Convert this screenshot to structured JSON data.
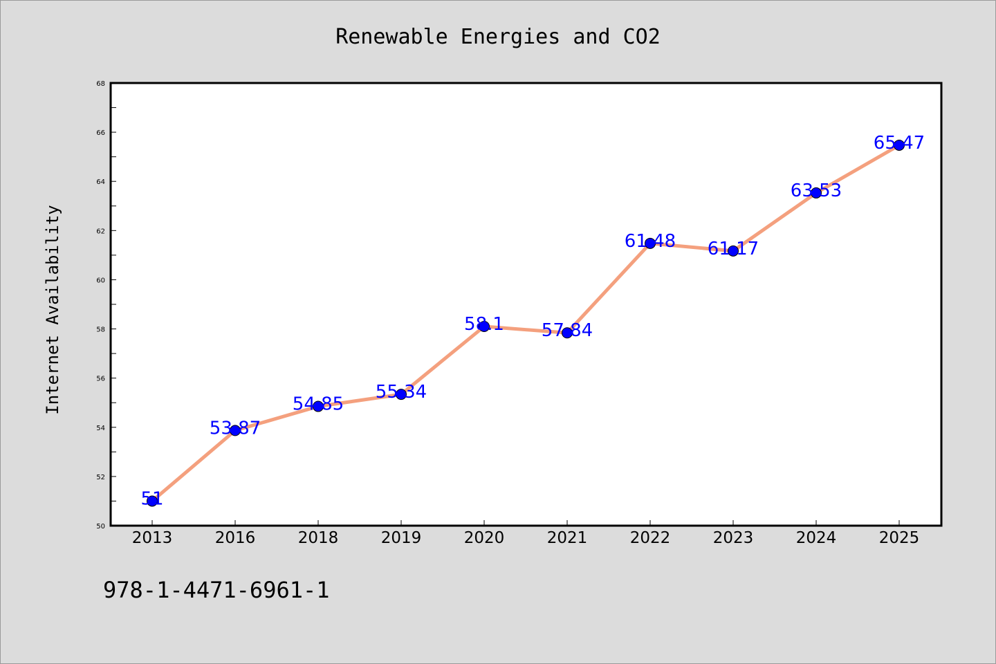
{
  "chart_data": {
    "type": "line",
    "title": "Renewable Energies and CO2",
    "xlabel": "",
    "ylabel": "Internet Availability",
    "categories": [
      "2013",
      "2016",
      "2018",
      "2019",
      "2020",
      "2021",
      "2022",
      "2023",
      "2024",
      "2025"
    ],
    "values": [
      51,
      53.87,
      54.85,
      55.34,
      58.1,
      57.84,
      61.48,
      61.17,
      63.53,
      65.47
    ],
    "data_labels": [
      "51",
      "53.87",
      "54.85",
      "55.34",
      "58.1",
      "57.84",
      "61.48",
      "61.17",
      "63.53",
      "65.47"
    ],
    "ylim": [
      50,
      68
    ],
    "yticks": [
      "50",
      "52",
      "54",
      "56",
      "58",
      "60",
      "62",
      "64",
      "66",
      "68"
    ],
    "grid": false,
    "legend": "none",
    "line_color": "#f4a07e",
    "marker_color": "#0000ff",
    "label_color": "#0000ff"
  },
  "footer": {
    "code": "978-1-4471-6961-1"
  }
}
